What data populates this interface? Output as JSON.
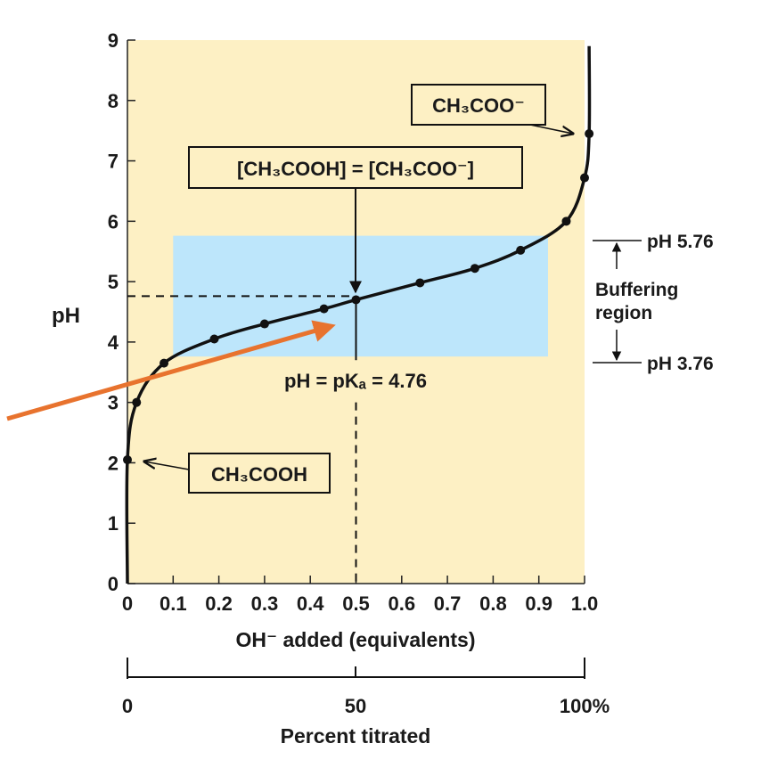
{
  "chart_data": {
    "type": "line",
    "title": "",
    "xlabel": "OH⁻ added (equivalents)",
    "ylabel": "pH",
    "xlim": [
      0,
      1.0
    ],
    "ylim": [
      0,
      9
    ],
    "x_ticks": [
      "0",
      "0.1",
      "0.2",
      "0.3",
      "0.4",
      "0.5",
      "0.6",
      "0.7",
      "0.8",
      "0.9",
      "1.0"
    ],
    "y_ticks": [
      "0",
      "1",
      "2",
      "3",
      "4",
      "5",
      "6",
      "7",
      "8",
      "9"
    ],
    "grid": false,
    "series": [
      {
        "points": [
          {
            "x": 0.0,
            "y": 2.05
          },
          {
            "x": 0.02,
            "y": 3.0
          },
          {
            "x": 0.08,
            "y": 3.65
          },
          {
            "x": 0.19,
            "y": 4.05
          },
          {
            "x": 0.3,
            "y": 4.3
          },
          {
            "x": 0.43,
            "y": 4.55
          },
          {
            "x": 0.5,
            "y": 4.7
          },
          {
            "x": 0.64,
            "y": 4.98
          },
          {
            "x": 0.76,
            "y": 5.22
          },
          {
            "x": 0.86,
            "y": 5.52
          },
          {
            "x": 0.96,
            "y": 6.0
          },
          {
            "x": 1.0,
            "y": 6.72
          },
          {
            "x": 1.01,
            "y": 7.45
          }
        ]
      }
    ],
    "buffer_region": {
      "x_range": [
        0.1,
        0.92
      ],
      "y_range": [
        3.76,
        5.76
      ]
    },
    "pka": 4.76,
    "annotations": {
      "acetate_label": "CH₃COO⁻",
      "equality_label": "[CH₃COOH] = [CH₃COO⁻]",
      "acid_label": "CH₃COOH",
      "pka_label": "pH = pKₐ = 4.76",
      "upper_bound_label": "pH 5.76",
      "lower_bound_label": "pH 3.76",
      "buffering_line1": "Buffering",
      "buffering_line2": "region"
    },
    "secondary_axis": {
      "title": "Percent titrated",
      "ticks": [
        "0",
        "50",
        "100%"
      ]
    }
  },
  "colors": {
    "plot_background": "#fdf0c4",
    "buffer_fill": "#bde6fb",
    "curve": "#111111",
    "arrow": "#e8732e"
  }
}
